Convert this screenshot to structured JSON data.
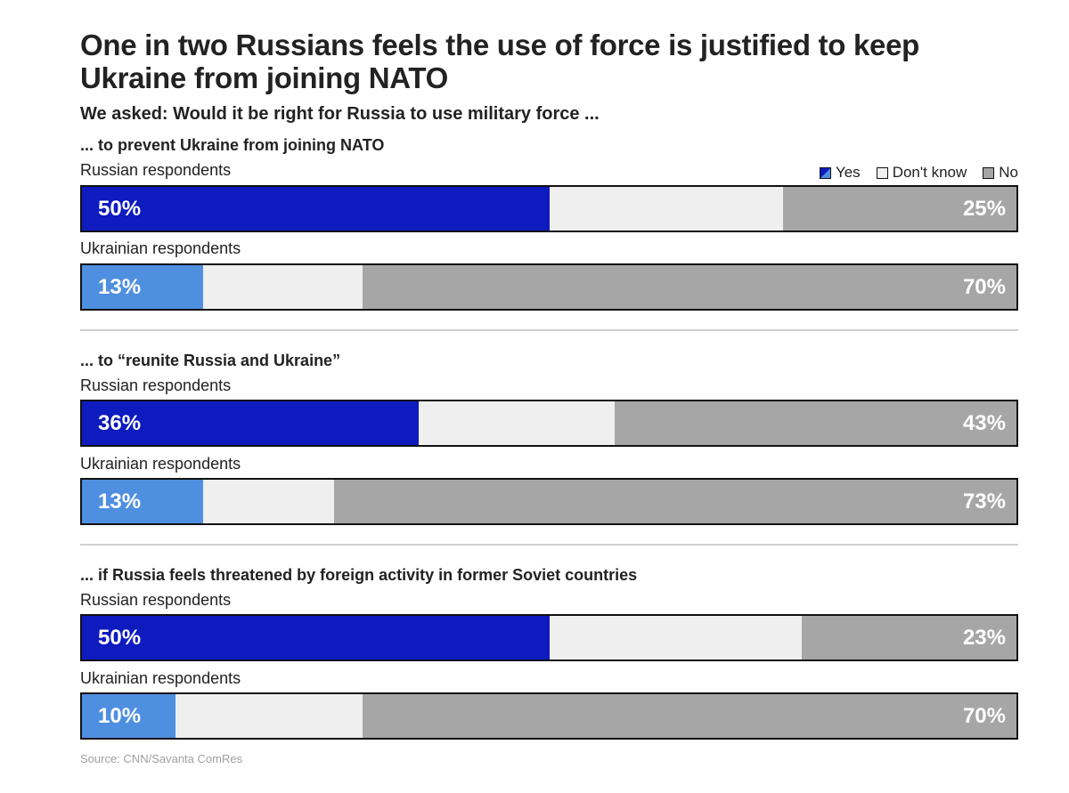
{
  "title": "One in two Russians feels the use of force is justified to keep Ukraine from joining NATO",
  "subtitle": "We asked: Would it be right for Russia to use military force ...",
  "legend": {
    "yes": "Yes",
    "dont_know": "Don't know",
    "no": "No"
  },
  "colors": {
    "yes_russian": "#0e1bbf",
    "yes_ukrainian": "#4f8fe0",
    "dont_know": "#efefef",
    "no": "#a6a6a6"
  },
  "source": "Source: CNN/Savanta ComRes",
  "chart_data": {
    "type": "bar",
    "orientation": "horizontal-stacked",
    "series_names": [
      "Yes",
      "Don't know",
      "No"
    ],
    "questions": [
      {
        "question": "... to prevent Ukraine from joining NATO",
        "groups": [
          {
            "label": "Russian respondents",
            "yes": 50,
            "dont_know": 25,
            "no": 25,
            "yes_label": "50%",
            "no_label": "25%"
          },
          {
            "label": "Ukrainian respondents",
            "yes": 13,
            "dont_know": 17,
            "no": 70,
            "yes_label": "13%",
            "no_label": "70%"
          }
        ]
      },
      {
        "question": "... to “reunite Russia and Ukraine”",
        "groups": [
          {
            "label": "Russian respondents",
            "yes": 36,
            "dont_know": 21,
            "no": 43,
            "yes_label": "36%",
            "no_label": "43%"
          },
          {
            "label": "Ukrainian respondents",
            "yes": 13,
            "dont_know": 14,
            "no": 73,
            "yes_label": "13%",
            "no_label": "73%"
          }
        ]
      },
      {
        "question": "... if Russia feels threatened by foreign activity in former Soviet countries",
        "groups": [
          {
            "label": "Russian respondents",
            "yes": 50,
            "dont_know": 27,
            "no": 23,
            "yes_label": "50%",
            "no_label": "23%"
          },
          {
            "label": "Ukrainian respondents",
            "yes": 10,
            "dont_know": 20,
            "no": 70,
            "yes_label": "10%",
            "no_label": "70%"
          }
        ]
      }
    ]
  }
}
